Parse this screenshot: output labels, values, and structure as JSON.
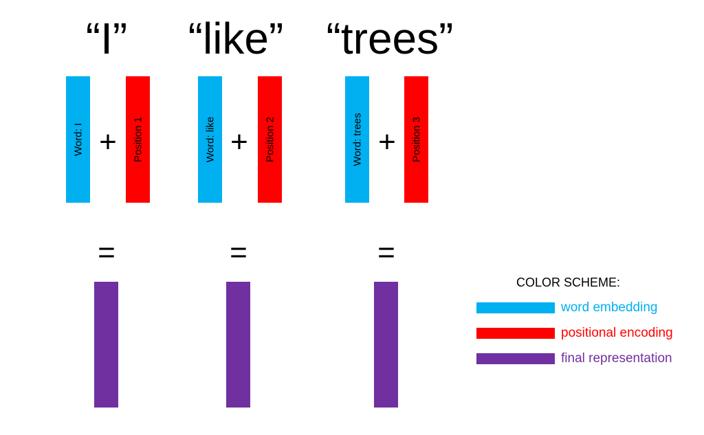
{
  "words": [
    {
      "title": "“I”",
      "word_label": "Word: I",
      "position_label": "Position 1",
      "plus": "+",
      "equals": "="
    },
    {
      "title": "“like”",
      "word_label": "Word: like",
      "position_label": "Position 2",
      "plus": "+",
      "equals": "="
    },
    {
      "title": "“trees”",
      "word_label": "Word: trees",
      "position_label": "Position 3",
      "plus": "+",
      "equals": "="
    }
  ],
  "legend": {
    "title": "COLOR SCHEME:",
    "items": [
      {
        "label": "word embedding",
        "color": "#00B0F0"
      },
      {
        "label": "positional encoding",
        "color": "#FF0000"
      },
      {
        "label": "final representation",
        "color": "#7030A0"
      }
    ]
  },
  "colors": {
    "word_embedding": "#00B0F0",
    "positional_encoding": "#FF0000",
    "final_representation": "#7030A0"
  }
}
